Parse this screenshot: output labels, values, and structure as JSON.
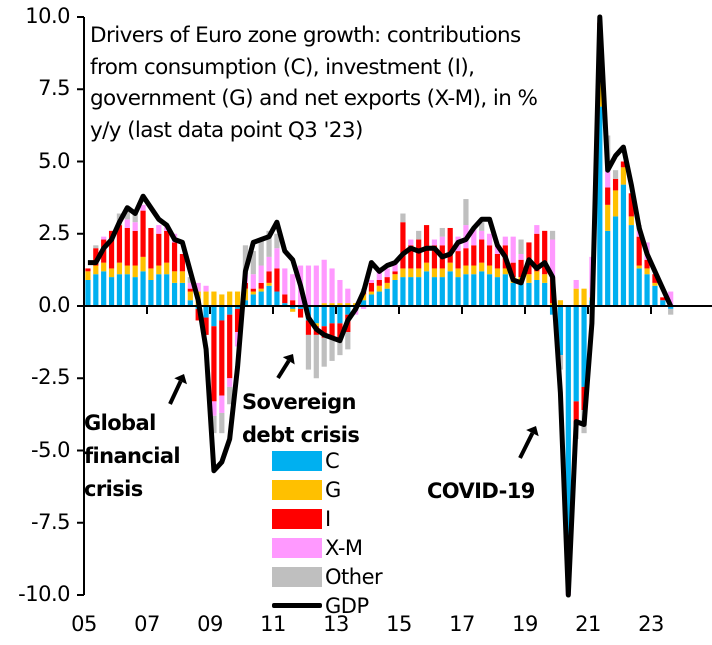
{
  "chart_data": {
    "type": "bar",
    "stacked": true,
    "title_lines": [
      "Drivers of Euro zone growth: contributions",
      "from consumption (C), investment (I),",
      "government (G) and net exports (X-M), in %",
      "y/y (last data point Q3 '23)"
    ],
    "xlabel": "",
    "ylabel": "",
    "ylim": [
      -10,
      10
    ],
    "yticks": [
      "10.0",
      "7.5",
      "5.0",
      "2.5",
      "0.0",
      "-2.5",
      "-5.0",
      "-7.5",
      "-10.0"
    ],
    "ytick_values": [
      10,
      7.5,
      5,
      2.5,
      0,
      -2.5,
      -5,
      -7.5,
      -10
    ],
    "xticks": [
      "05",
      "07",
      "09",
      "11",
      "13",
      "15",
      "17",
      "19",
      "21",
      "23"
    ],
    "x_start": "2005Q1",
    "x_end": "2023Q3",
    "legend_position": "bottom-center",
    "colors": {
      "C": "#00B0F0",
      "G": "#FFC000",
      "I": "#FF0000",
      "X-M": "#FF99FF",
      "Other": "#BFBFBF",
      "GDP": "#000000"
    },
    "series": [
      {
        "name": "C",
        "values": [
          0.9,
          1.1,
          1.2,
          1.0,
          1.1,
          1.1,
          1.0,
          1.2,
          0.9,
          1.1,
          1.1,
          0.8,
          0.8,
          0.2,
          -0.1,
          -0.4,
          -0.7,
          -0.5,
          -0.3,
          -0.1,
          0.2,
          0.4,
          0.5,
          0.7,
          0.5,
          0.1,
          -0.1,
          -0.1,
          -0.5,
          -0.6,
          -0.7,
          -0.6,
          -0.6,
          -0.3,
          -0.1,
          0.2,
          0.4,
          0.5,
          0.6,
          0.9,
          1.0,
          1.0,
          1.0,
          1.2,
          1.0,
          1.0,
          1.2,
          1.0,
          1.1,
          1.1,
          1.2,
          1.1,
          1.0,
          1.1,
          0.8,
          0.8,
          0.8,
          0.9,
          0.8,
          -0.3,
          -1.7,
          -8.5,
          -3.3,
          -2.8,
          0.2,
          6.9,
          2.6,
          3.1,
          4.2,
          2.8,
          1.3,
          1.1,
          0.7,
          0.2,
          -0.1
        ]
      },
      {
        "name": "G",
        "values": [
          0.3,
          0.3,
          0.3,
          0.3,
          0.4,
          0.3,
          0.4,
          0.5,
          0.4,
          0.3,
          0.4,
          0.4,
          0.4,
          0.3,
          0.5,
          0.5,
          0.5,
          0.4,
          0.5,
          0.5,
          0.4,
          0.1,
          0.1,
          0.1,
          0.0,
          0.0,
          -0.1,
          0.0,
          0.0,
          -0.1,
          0.1,
          0.1,
          0.1,
          0.1,
          0.1,
          0.2,
          0.1,
          0.2,
          0.2,
          0.2,
          0.3,
          0.3,
          0.3,
          0.3,
          0.3,
          0.3,
          0.3,
          0.3,
          0.3,
          0.3,
          0.3,
          0.3,
          0.3,
          0.2,
          0.2,
          0.2,
          0.3,
          0.3,
          0.3,
          0.1,
          0.2,
          -0.3,
          0.6,
          0.6,
          0.1,
          1.9,
          0.9,
          0.9,
          0.6,
          0.3,
          0.1,
          0.2,
          0.1,
          0.0,
          0.0
        ]
      },
      {
        "name": "I",
        "values": [
          0.1,
          0.6,
          0.8,
          1.3,
          1.3,
          1.3,
          1.2,
          1.6,
          1.4,
          1.1,
          1.1,
          1.0,
          0.6,
          0.1,
          -0.4,
          -0.6,
          -2.6,
          -2.6,
          -2.2,
          -0.8,
          0.2,
          0.1,
          0.2,
          0.4,
          0.8,
          0.3,
          0.2,
          -0.3,
          -0.5,
          -0.3,
          -0.4,
          -0.5,
          -0.6,
          -0.6,
          0.0,
          0.1,
          0.3,
          0.2,
          0.2,
          0.1,
          1.6,
          0.8,
          1.0,
          1.3,
          0.8,
          0.8,
          1.2,
          0.6,
          0.6,
          0.7,
          0.8,
          0.7,
          0.5,
          0.8,
          0.5,
          0.6,
          1.1,
          1.3,
          1.5,
          0.9,
          0.0,
          -0.8,
          -0.8,
          -0.8,
          0.0,
          1.0,
          0.6,
          0.4,
          0.2,
          0.8,
          1.0,
          0.3,
          0.3,
          0.1,
          0.0
        ]
      },
      {
        "name": "X-M",
        "values": [
          0.0,
          0.0,
          0.1,
          0.0,
          0.0,
          0.3,
          0.3,
          0.2,
          0.0,
          0.3,
          0.2,
          0.3,
          0.0,
          0.2,
          0.3,
          0.2,
          -0.5,
          -0.6,
          -0.3,
          -0.5,
          0.3,
          0.5,
          0.6,
          0.5,
          0.7,
          0.9,
          0.9,
          1.4,
          1.4,
          1.4,
          1.5,
          1.2,
          0.8,
          0.5,
          -0.2,
          -0.1,
          0.1,
          0.3,
          0.3,
          0.3,
          0.0,
          0.2,
          0.0,
          0.0,
          0.2,
          0.3,
          0.0,
          0.5,
          0.8,
          0.6,
          0.3,
          0.4,
          0.3,
          0.3,
          0.9,
          0.2,
          0.0,
          0.3,
          0.0,
          1.3,
          0.0,
          -2.0,
          0.3,
          0.0,
          1.4,
          0.0,
          0.7,
          0.0,
          0.0,
          0.0,
          0.2,
          0.6,
          0.0,
          0.0,
          0.5
        ]
      },
      {
        "name": "Other",
        "values": [
          0.0,
          0.1,
          0.0,
          0.0,
          0.4,
          0.4,
          0.4,
          0.0,
          0.0,
          0.0,
          0.0,
          0.0,
          0.0,
          0.2,
          0.0,
          0.0,
          -0.6,
          -0.7,
          -0.6,
          0.0,
          1.0,
          0.8,
          0.9,
          0.9,
          0.5,
          0.0,
          0.0,
          0.0,
          -1.2,
          -1.5,
          -1.0,
          -0.8,
          -0.5,
          -0.6,
          0.0,
          0.1,
          0.0,
          0.1,
          0.0,
          0.0,
          0.3,
          0.0,
          0.3,
          0.0,
          0.0,
          0.3,
          0.0,
          0.0,
          0.9,
          0.0,
          0.3,
          0.0,
          0.0,
          0.0,
          0.0,
          0.5,
          0.0,
          0.0,
          0.0,
          0.3,
          -0.5,
          -0.6,
          -0.5,
          -0.8,
          0.0,
          0.0,
          1.1,
          0.3,
          0.0,
          0.0,
          0.2,
          0.0,
          0.0,
          0.0,
          -0.2
        ]
      },
      {
        "name": "GDP",
        "type": "line",
        "values": [
          1.5,
          1.5,
          2.0,
          2.3,
          2.9,
          3.4,
          3.2,
          3.8,
          3.4,
          3.0,
          2.8,
          2.3,
          2.2,
          1.2,
          0.2,
          -1.5,
          -5.7,
          -5.4,
          -4.6,
          -2.1,
          1.2,
          2.2,
          2.3,
          2.4,
          2.9,
          1.9,
          1.6,
          0.7,
          -0.4,
          -0.8,
          -1.0,
          -1.1,
          -1.2,
          -0.5,
          -0.1,
          0.5,
          1.5,
          1.2,
          1.4,
          1.5,
          1.8,
          2.0,
          1.9,
          2.0,
          2.0,
          1.7,
          1.8,
          2.2,
          2.3,
          2.7,
          3.0,
          3.0,
          2.1,
          1.7,
          0.9,
          0.8,
          1.6,
          1.3,
          1.5,
          1.0,
          -3.0,
          -14.2,
          -4.0,
          -4.1,
          -0.6,
          13.9,
          4.7,
          5.2,
          5.5,
          4.2,
          2.7,
          1.8,
          1.2,
          0.6,
          0.0
        ]
      }
    ],
    "annotations": [
      {
        "text_lines": [
          "Global",
          "financial",
          "crisis"
        ],
        "bold": true
      },
      {
        "text_lines": [
          "Sovereign",
          "debt crisis"
        ],
        "bold": true
      },
      {
        "text_lines": [
          "COVID-19"
        ],
        "bold": true
      }
    ]
  },
  "legend": [
    {
      "label": "C",
      "key": "C"
    },
    {
      "label": "G",
      "key": "G"
    },
    {
      "label": "I",
      "key": "I"
    },
    {
      "label": "X-M",
      "key": "X-M"
    },
    {
      "label": "Other",
      "key": "Other"
    },
    {
      "label": "GDP",
      "key": "GDP"
    }
  ]
}
